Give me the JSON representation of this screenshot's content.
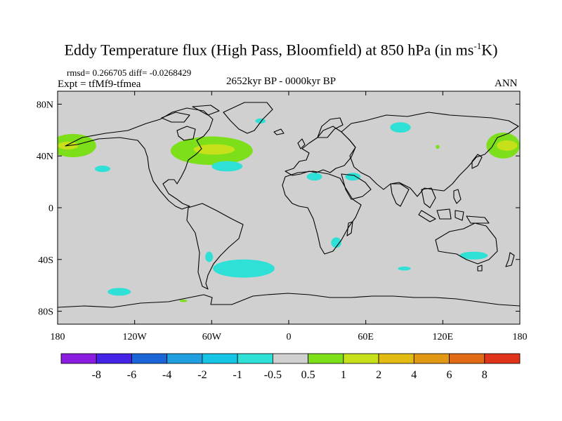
{
  "title": "Eddy Temperature flux (High Pass, Bloomfield) at 850 hPa (in ms",
  "title_sup": "-1",
  "title_end": "K)",
  "left_note": "rmsd= 0.266705 diff= -0.0268429",
  "experiment": "Expt = tfMf9-tfmea",
  "period": "2652kyr BP - 0000kyr BP",
  "season": "ANN",
  "map": {
    "projection": "cylindrical equidistant",
    "lon_range": [
      -180,
      180
    ],
    "lat_range": [
      -90,
      90
    ],
    "background_color": "#d0d0d0",
    "x_ticks": [
      {
        "lon": -180,
        "label": "180"
      },
      {
        "lon": -120,
        "label": "120W"
      },
      {
        "lon": -60,
        "label": "60W"
      },
      {
        "lon": 0,
        "label": "0"
      },
      {
        "lon": 60,
        "label": "60E"
      },
      {
        "lon": 120,
        "label": "120E"
      },
      {
        "lon": 180,
        "label": "180"
      }
    ],
    "y_ticks": [
      {
        "lat": 80,
        "label": "80N"
      },
      {
        "lat": 40,
        "label": "40N"
      },
      {
        "lat": 0,
        "label": "0"
      },
      {
        "lat": -40,
        "label": "40S"
      },
      {
        "lat": -80,
        "label": "80S"
      }
    ],
    "anomalies": [
      {
        "name": "north-pacific-west-positive",
        "lon_center": 167,
        "lat_center": 48,
        "lon_radius": 13,
        "lat_radius": 10,
        "level": "1"
      },
      {
        "name": "north-pacific-west-core",
        "lon_center": 170,
        "lat_center": 48,
        "lon_radius": 8,
        "lat_radius": 4,
        "level": "2"
      },
      {
        "name": "north-pacific-east-positive",
        "lon_center": -168,
        "lat_center": 48,
        "lon_radius": 18,
        "lat_radius": 9,
        "level": "1"
      },
      {
        "name": "north-pacific-east-core",
        "lon_center": -172,
        "lat_center": 48,
        "lon_radius": 8,
        "lat_radius": 3,
        "level": "2"
      },
      {
        "name": "north-atlantic-positive",
        "lon_center": -60,
        "lat_center": 44,
        "lon_radius": 32,
        "lat_radius": 11,
        "level": "1"
      },
      {
        "name": "north-atlantic-core",
        "lon_center": -58,
        "lat_center": 45,
        "lon_radius": 16,
        "lat_radius": 4,
        "level": "2"
      },
      {
        "name": "subtropical-pacific-negative",
        "lon_center": -145,
        "lat_center": 30,
        "lon_radius": 6,
        "lat_radius": 2.5,
        "level": "-1"
      },
      {
        "name": "subtropical-atlantic-negative",
        "lon_center": -48,
        "lat_center": 32,
        "lon_radius": 12,
        "lat_radius": 4,
        "level": "-1"
      },
      {
        "name": "greenland-negative",
        "lon_center": -22,
        "lat_center": 67,
        "lon_radius": 4,
        "lat_radius": 2,
        "level": "-1"
      },
      {
        "name": "siberia-negative",
        "lon_center": 87,
        "lat_center": 62,
        "lon_radius": 8,
        "lat_radius": 4,
        "level": "-1"
      },
      {
        "name": "sahara-negative",
        "lon_center": 20,
        "lat_center": 24,
        "lon_radius": 6,
        "lat_radius": 3,
        "level": "-1"
      },
      {
        "name": "arabia-negative",
        "lon_center": 50,
        "lat_center": 24,
        "lon_radius": 6,
        "lat_radius": 3,
        "level": "-1"
      },
      {
        "name": "central-asia-positive",
        "lon_center": 116,
        "lat_center": 47,
        "lon_radius": 1.5,
        "lat_radius": 1.5,
        "level": "1"
      },
      {
        "name": "southern-africa-negative",
        "lon_center": 37,
        "lat_center": -27,
        "lon_radius": 4,
        "lat_radius": 4,
        "level": "-1"
      },
      {
        "name": "south-atlantic-negative",
        "lon_center": -35,
        "lat_center": -47,
        "lon_radius": 24,
        "lat_radius": 7,
        "level": "-1"
      },
      {
        "name": "patagonia-negative",
        "lon_center": -62,
        "lat_center": -38,
        "lon_radius": 3,
        "lat_radius": 4,
        "level": "-1"
      },
      {
        "name": "indian-ocean-negative",
        "lon_center": 90,
        "lat_center": -47,
        "lon_radius": 5,
        "lat_radius": 1.5,
        "level": "-1"
      },
      {
        "name": "southern-pacific-negative",
        "lon_center": -132,
        "lat_center": -65,
        "lon_radius": 9,
        "lat_radius": 3,
        "level": "-1"
      },
      {
        "name": "australia-negative",
        "lon_center": 144,
        "lat_center": -37,
        "lon_radius": 11,
        "lat_radius": 3,
        "level": "-1"
      },
      {
        "name": "antarctic-peninsula-positive",
        "lon_center": -82,
        "lat_center": -72,
        "lon_radius": 3,
        "lat_radius": 1,
        "level": "1"
      }
    ]
  },
  "colorbar": {
    "labels": [
      "-8",
      "-6",
      "-4",
      "-2",
      "-1",
      "-0.5",
      "0.5",
      "1",
      "2",
      "4",
      "6",
      "8"
    ],
    "colors": [
      "#8a1ce0",
      "#4422e6",
      "#1a66d8",
      "#1f9fe0",
      "#16c4e6",
      "#2ee0d6",
      "#d0d0d0",
      "#7ddf1a",
      "#c6e01a",
      "#e2bc12",
      "#e29814",
      "#e06a16",
      "#e0341a"
    ]
  },
  "level_colors": {
    "-1": "#2ee0d6",
    "1": "#7ddf1a",
    "2": "#c6e01a"
  }
}
